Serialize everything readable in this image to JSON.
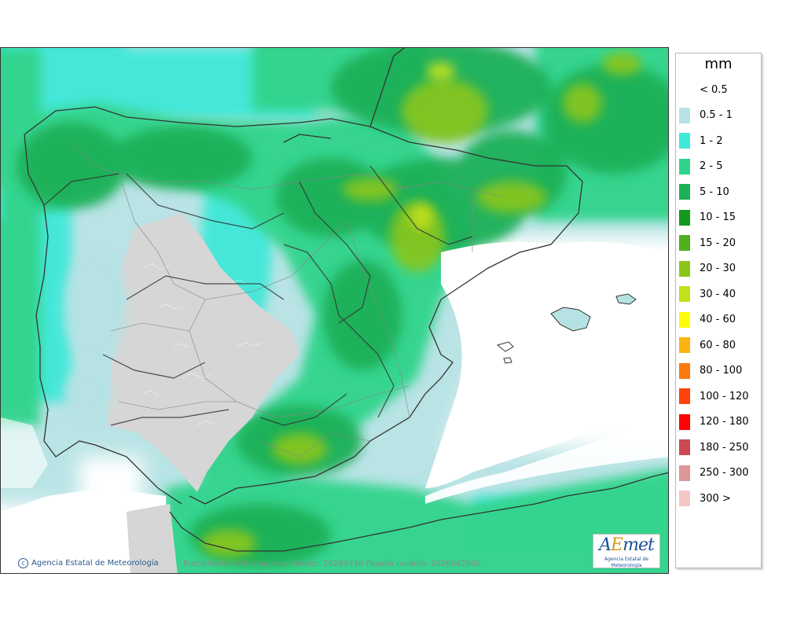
{
  "map": {
    "caption": "Precipitación 24h máxima. Validez: 20260430 Pasada modelo: 2026042900",
    "credit": "Agencia Estatal de Meteorología",
    "colors": {
      "sea": "#ffffff",
      "land_dry": "#d6d6d6",
      "coast": "#333333",
      "region_border": "#888888"
    }
  },
  "logo": {
    "text": "AEmet",
    "subtitle": "Agencia Estatal de Meteorología"
  },
  "legend": {
    "unit": "mm",
    "items": [
      {
        "label": "< 0.5",
        "color": "#ffffff"
      },
      {
        "label": "0.5 - 1",
        "color": "#b6e2e4"
      },
      {
        "label": "1 - 2",
        "color": "#40e8d8"
      },
      {
        "label": "2 - 5",
        "color": "#30d48c"
      },
      {
        "label": "5 - 10",
        "color": "#1eb058"
      },
      {
        "label": "10 - 15",
        "color": "#139a1e"
      },
      {
        "label": "15 - 20",
        "color": "#4fb01c"
      },
      {
        "label": "20 - 30",
        "color": "#8ac61a"
      },
      {
        "label": "30 - 40",
        "color": "#c4e01c"
      },
      {
        "label": "40 - 60",
        "color": "#fcfc0c"
      },
      {
        "label": "60 - 80",
        "color": "#fcb414"
      },
      {
        "label": "80 - 100",
        "color": "#fc7a10"
      },
      {
        "label": "100 - 120",
        "color": "#fc440c"
      },
      {
        "label": "120 - 180",
        "color": "#fc0404"
      },
      {
        "label": "180 - 250",
        "color": "#cc4a52"
      },
      {
        "label": "250 - 300",
        "color": "#de9696"
      },
      {
        "label": "300 >",
        "color": "#f4c6c6"
      }
    ]
  }
}
